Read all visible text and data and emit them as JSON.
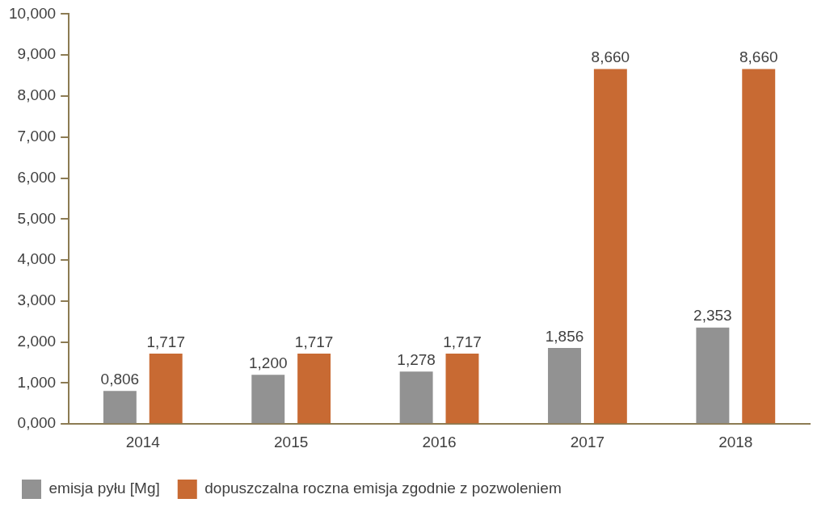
{
  "chart_data": {
    "type": "bar",
    "categories": [
      "2014",
      "2015",
      "2016",
      "2017",
      "2018"
    ],
    "series": [
      {
        "name": "emisja pyłu [Mg]",
        "color": "#929292",
        "values": [
          0.806,
          1.2,
          1.278,
          1.856,
          2.353
        ],
        "value_labels": [
          "0,806",
          "1,200",
          "1,278",
          "1,856",
          "2,353"
        ]
      },
      {
        "name": "dopuszczalna roczna emisja zgodnie z pozwoleniem",
        "color": "#c86a33",
        "values": [
          1.717,
          1.717,
          1.717,
          8.66,
          8.66
        ],
        "value_labels": [
          "1,717",
          "1,717",
          "1,717",
          "8,660",
          "8,660"
        ]
      }
    ],
    "ylim": [
      0,
      10
    ],
    "yticks": [
      {
        "value": 0,
        "label": "0,000"
      },
      {
        "value": 1,
        "label": "1,000"
      },
      {
        "value": 2,
        "label": "2,000"
      },
      {
        "value": 3,
        "label": "3,000"
      },
      {
        "value": 4,
        "label": "4,000"
      },
      {
        "value": 5,
        "label": "5,000"
      },
      {
        "value": 6,
        "label": "6,000"
      },
      {
        "value": 7,
        "label": "7,000"
      },
      {
        "value": 8,
        "label": "8,000"
      },
      {
        "value": 9,
        "label": "9,000"
      },
      {
        "value": 10,
        "label": "10,000"
      }
    ],
    "grid": false,
    "legend": "bottom left"
  }
}
